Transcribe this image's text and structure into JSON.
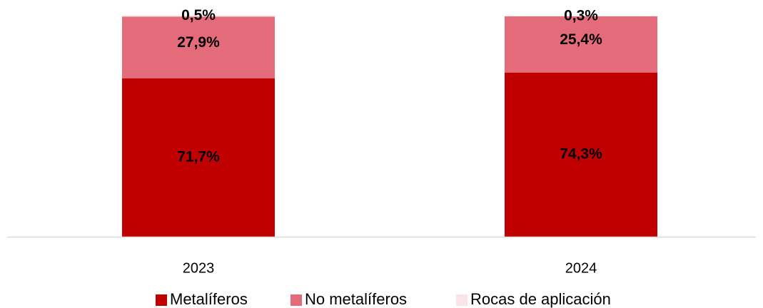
{
  "chart_data": {
    "type": "bar",
    "stacked": true,
    "categories": [
      "2023",
      "2024"
    ],
    "series": [
      {
        "name": "Metalíferos",
        "values": [
          71.7,
          74.3
        ],
        "labels": [
          "71,7%",
          "74,3%"
        ],
        "color": "#c00000"
      },
      {
        "name": "No metalíferos",
        "values": [
          27.9,
          25.4
        ],
        "labels": [
          "27,9%",
          "25,4%"
        ],
        "color": "#e46c7a"
      },
      {
        "name": "Rocas de aplicación",
        "values": [
          0.5,
          0.3
        ],
        "labels": [
          "0,5%",
          "0,3%"
        ],
        "color": "#fbe3e7"
      }
    ],
    "ylim": [
      0,
      100
    ],
    "legend_position": "bottom",
    "grid": false
  }
}
